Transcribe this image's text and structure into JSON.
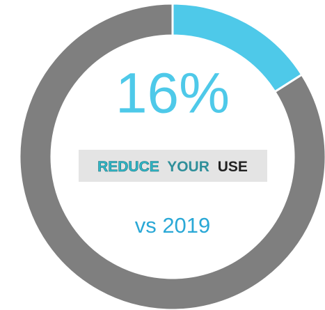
{
  "chart_data": {
    "type": "donut",
    "values": [
      16,
      84
    ],
    "value_labels": [
      "16%",
      null
    ],
    "colors": [
      "#4ec9e9",
      "#7f7f7f"
    ],
    "logo": [
      "REDUCE",
      "YOUR",
      "USE"
    ],
    "subtitle": "vs 2019"
  }
}
